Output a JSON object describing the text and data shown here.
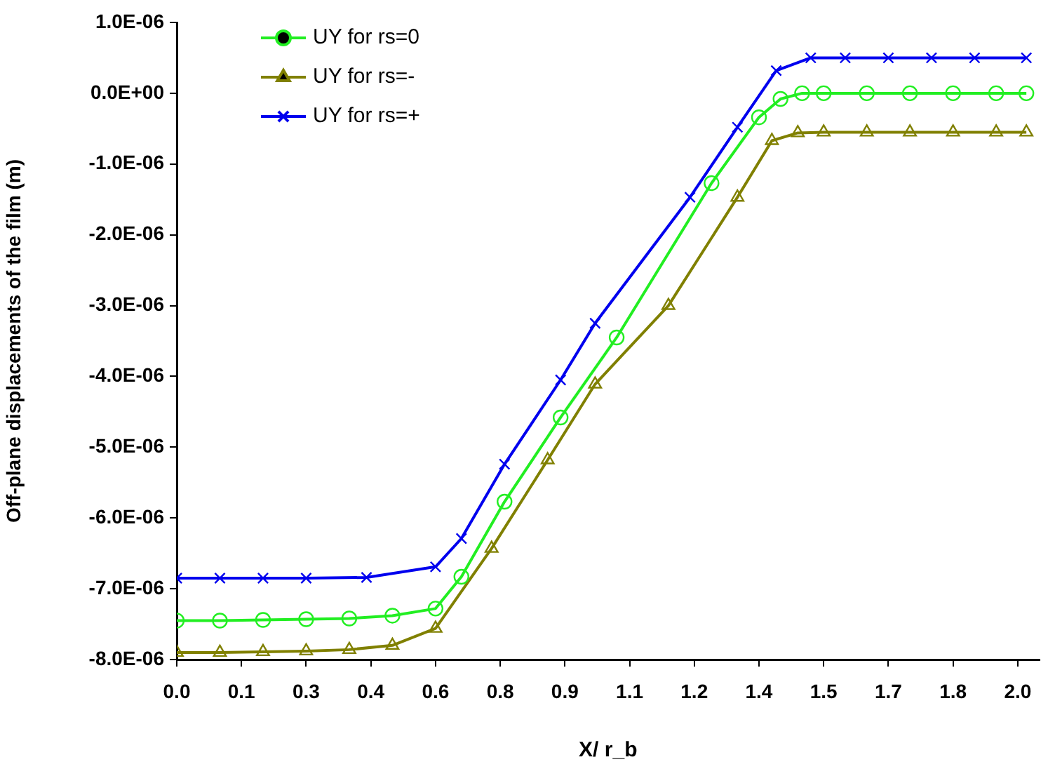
{
  "chart_data": {
    "type": "line",
    "xlabel": "X/ r_b",
    "ylabel": "Off-plane displacements of the film (m)",
    "xlim": [
      0,
      2.0
    ],
    "xticks": [
      {
        "value": 0,
        "label": "0.0"
      },
      {
        "value": 0.15,
        "label": "0.1"
      },
      {
        "value": 0.3,
        "label": "0.3"
      },
      {
        "value": 0.45,
        "label": "0.4"
      },
      {
        "value": 0.6,
        "label": "0.6"
      },
      {
        "value": 0.75,
        "label": "0.8"
      },
      {
        "value": 0.9,
        "label": "0.9"
      },
      {
        "value": 1.05,
        "label": "1.1"
      },
      {
        "value": 1.2,
        "label": "1.2"
      },
      {
        "value": 1.35,
        "label": "1.4"
      },
      {
        "value": 1.5,
        "label": "1.5"
      },
      {
        "value": 1.65,
        "label": "1.7"
      },
      {
        "value": 1.8,
        "label": "1.8"
      },
      {
        "value": 1.95,
        "label": "2.0"
      }
    ],
    "ylim": [
      -8e-06,
      1e-06
    ],
    "yticks": [
      {
        "value": 1e-06,
        "label": "1.0E-06"
      },
      {
        "value": 0,
        "label": "0.0E+00"
      },
      {
        "value": -1e-06,
        "label": "-1.0E-06"
      },
      {
        "value": -2e-06,
        "label": "-2.0E-06"
      },
      {
        "value": -3e-06,
        "label": "-3.0E-06"
      },
      {
        "value": -4e-06,
        "label": "-4.0E-06"
      },
      {
        "value": -5e-06,
        "label": "-5.0E-06"
      },
      {
        "value": -6e-06,
        "label": "-6.0E-06"
      },
      {
        "value": -7e-06,
        "label": "-7.0E-06"
      },
      {
        "value": -8e-06,
        "label": "-8.0E-06"
      }
    ],
    "legend": "top left",
    "series": [
      {
        "name": "UY for rs=0",
        "color": "#22ee22",
        "marker": "circle",
        "x": [
          0,
          0.1,
          0.2,
          0.3,
          0.4,
          0.5,
          0.6,
          0.66,
          0.76,
          0.89,
          1.02,
          1.24,
          1.35,
          1.4,
          1.45,
          1.5,
          1.6,
          1.7,
          1.8,
          1.9,
          1.97
        ],
        "values": [
          -7.45e-06,
          -7.45e-06,
          -7.44e-06,
          -7.43e-06,
          -7.42e-06,
          -7.38e-06,
          -7.28e-06,
          -6.83e-06,
          -5.77e-06,
          -4.58e-06,
          -3.45e-06,
          -1.27e-06,
          -3.4e-07,
          -8e-08,
          0,
          0,
          0,
          0,
          0,
          0,
          0
        ]
      },
      {
        "name": "UY for rs=-",
        "color": "#808000",
        "marker": "triangle",
        "x": [
          0,
          0.1,
          0.2,
          0.3,
          0.4,
          0.5,
          0.6,
          0.73,
          0.86,
          0.97,
          1.14,
          1.3,
          1.38,
          1.44,
          1.5,
          1.6,
          1.7,
          1.8,
          1.9,
          1.97
        ],
        "values": [
          -7.9e-06,
          -7.9e-06,
          -7.89e-06,
          -7.88e-06,
          -7.86e-06,
          -7.8e-06,
          -7.56e-06,
          -6.43e-06,
          -5.18e-06,
          -4.11e-06,
          -3e-06,
          -1.47e-06,
          -6.7e-07,
          -5.6e-07,
          -5.5e-07,
          -5.5e-07,
          -5.5e-07,
          -5.5e-07,
          -5.5e-07,
          -5.5e-07
        ]
      },
      {
        "name": "UY for rs=+",
        "color": "#0000ee",
        "marker": "cross",
        "x": [
          0,
          0.1,
          0.2,
          0.3,
          0.44,
          0.6,
          0.66,
          0.76,
          0.89,
          0.97,
          1.19,
          1.3,
          1.39,
          1.47,
          1.55,
          1.65,
          1.75,
          1.85,
          1.97
        ],
        "values": [
          -6.85e-06,
          -6.85e-06,
          -6.85e-06,
          -6.85e-06,
          -6.84e-06,
          -6.69e-06,
          -6.29e-06,
          -5.24e-06,
          -4.05e-06,
          -3.25e-06,
          -1.47e-06,
          -4.8e-07,
          3.2e-07,
          5e-07,
          5e-07,
          5e-07,
          5e-07,
          5e-07,
          5e-07
        ]
      }
    ]
  }
}
